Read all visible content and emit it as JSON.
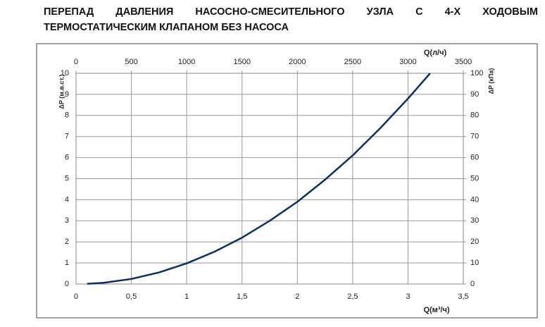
{
  "chart_data": {
    "type": "line",
    "title": "ПЕРЕПАД ДАВЛЕНИЯ НАСОСНО-СМЕСИТЕЛЬНОГО УЗЛА С 4-Х ХОДОВЫМ ТЕРМОСТАТИЧЕСКИМ КЛАПАНОМ БЕЗ НАСОСА",
    "ylabel": "ΔP (м.в.ст.)",
    "y2label": "ΔP (кПа)",
    "xlabel": "Q(м³/ч)",
    "x2label": "Q(л/ч)",
    "x": [
      0.1,
      0.25,
      0.5,
      0.75,
      1,
      1.25,
      1.5,
      1.75,
      2,
      2.25,
      2.5,
      2.75,
      3,
      3.2
    ],
    "series": [
      {
        "color": "#0d2f5f",
        "values": [
          0.01,
          0.06,
          0.24,
          0.55,
          0.98,
          1.53,
          2.2,
          3.0,
          3.9,
          4.95,
          6.1,
          7.4,
          8.8,
          10
        ]
      }
    ],
    "xlim": [
      0,
      3.5
    ],
    "xticks": [
      0,
      {
        "value": 0.5,
        "label": "0,5"
      },
      1,
      {
        "value": 1.5,
        "label": "1,5"
      },
      2,
      {
        "value": 2.5,
        "label": "2,5"
      },
      3,
      {
        "value": 3.5,
        "label": "3,5"
      }
    ],
    "x2lim": [
      0,
      3500
    ],
    "x2ticks": [
      0,
      500,
      1000,
      1500,
      2000,
      2500,
      3000,
      3500
    ],
    "ylim": [
      0,
      10
    ],
    "yticks": [
      0,
      1,
      2,
      3,
      4,
      5,
      6,
      7,
      8,
      9,
      10
    ],
    "y2lim": [
      0,
      100
    ],
    "y2ticks": [
      0,
      10,
      20,
      30,
      40,
      50,
      60,
      70,
      80,
      90,
      100
    ],
    "grid": true
  }
}
